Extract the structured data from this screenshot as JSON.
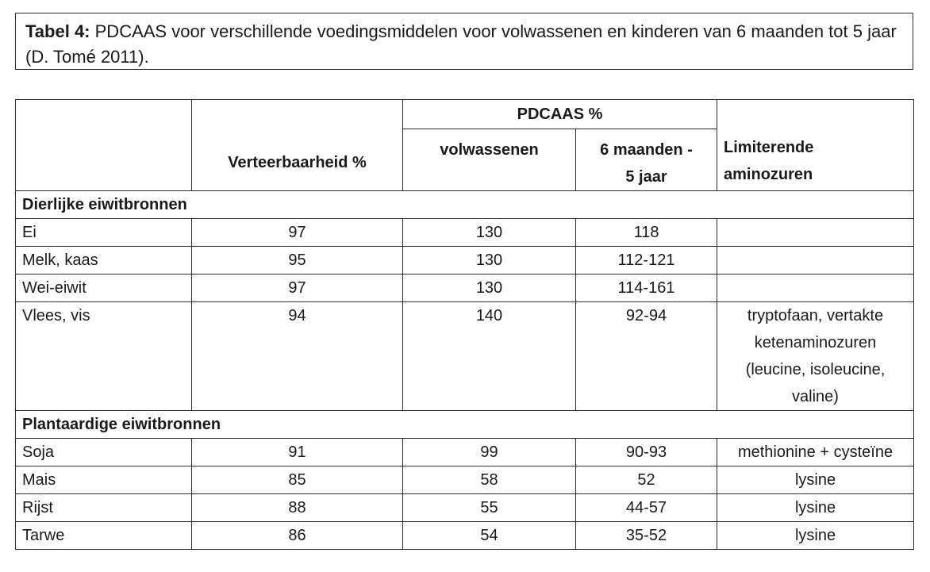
{
  "caption": {
    "label": "Tabel 4:",
    "text": " PDCAAS voor verschillende voedingsmiddelen voor volwassenen en kinderen van 6 maanden tot 5 jaar (D. Tomé 2011)."
  },
  "table": {
    "headers": {
      "verteerbaarheid": "Verteerbaarheid %",
      "pdcaas": "PDCAAS %",
      "volwassenen": "volwassenen",
      "kinderen_line1": "6 maanden -",
      "kinderen_line2": "5 jaar",
      "limiterend_line1": "Limiterende",
      "limiterend_line2": "aminozuren"
    },
    "groups": [
      {
        "title": "Dierlijke eiwitbronnen",
        "rows": [
          {
            "food": "Ei",
            "verteerbaarheid": "97",
            "volwassenen": "130",
            "kinderen": "118",
            "limiterend": ""
          },
          {
            "food": "Melk, kaas",
            "verteerbaarheid": "95",
            "volwassenen": "130",
            "kinderen": "112-121",
            "limiterend": ""
          },
          {
            "food": "Wei-eiwit",
            "verteerbaarheid": "97",
            "volwassenen": "130",
            "kinderen": "114-161",
            "limiterend": ""
          },
          {
            "food": "Vlees, vis",
            "verteerbaarheid": "94",
            "volwassenen": "140",
            "kinderen": "92-94",
            "limiterend_lines": [
              "tryptofaan, vertakte",
              "ketenaminozuren",
              "(leucine, isoleucine,",
              "valine)"
            ]
          }
        ]
      },
      {
        "title": "Plantaardige eiwitbronnen",
        "rows": [
          {
            "food": "Soja",
            "verteerbaarheid": "91",
            "volwassenen": "99",
            "kinderen": "90-93",
            "limiterend": "methionine + cysteïne"
          },
          {
            "food": "Mais",
            "verteerbaarheid": "85",
            "volwassenen": "58",
            "kinderen": "52",
            "limiterend": "lysine"
          },
          {
            "food": "Rijst",
            "verteerbaarheid": "88",
            "volwassenen": "55",
            "kinderen": "44-57",
            "limiterend": "lysine"
          },
          {
            "food": "Tarwe",
            "verteerbaarheid": "86",
            "volwassenen": "54",
            "kinderen": "35-52",
            "limiterend": "lysine"
          }
        ]
      }
    ]
  }
}
